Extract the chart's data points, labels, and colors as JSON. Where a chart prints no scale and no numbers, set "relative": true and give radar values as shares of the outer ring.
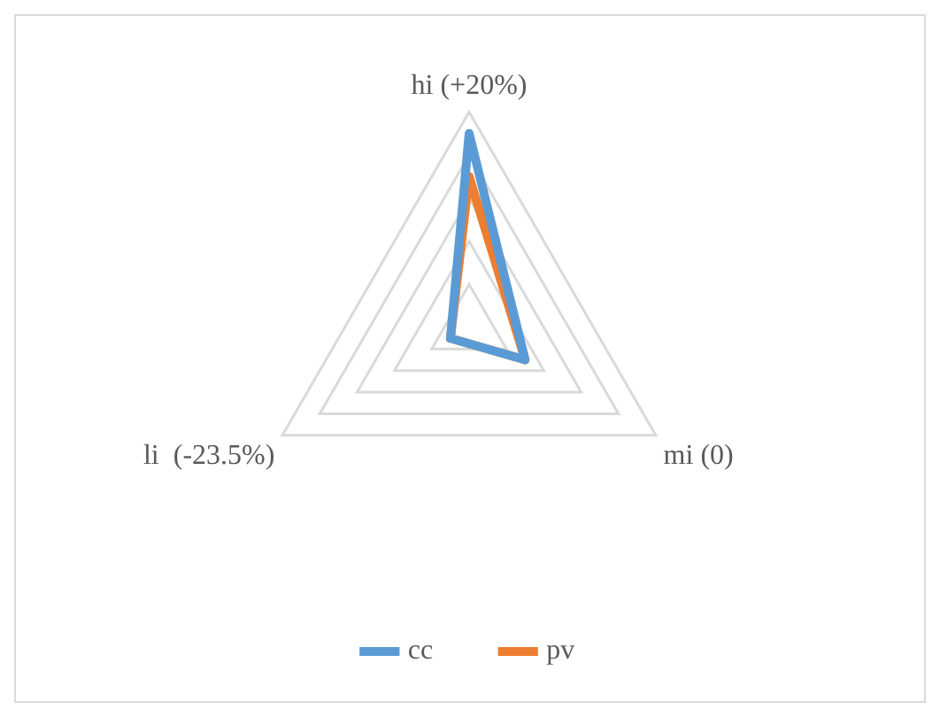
{
  "chart_data": {
    "type": "radar",
    "relative": true,
    "categories": [
      "hi (+20%)",
      "mi (0)",
      "li  (-23.5%)"
    ],
    "series": [
      {
        "name": "cc",
        "color": "#5b9bd5",
        "values": [
          0.9,
          0.3,
          0.1
        ]
      },
      {
        "name": "pv",
        "color": "#ed7d31",
        "values": [
          0.7,
          0.3,
          0.1
        ]
      }
    ],
    "legend": "bottom",
    "grid": true
  }
}
